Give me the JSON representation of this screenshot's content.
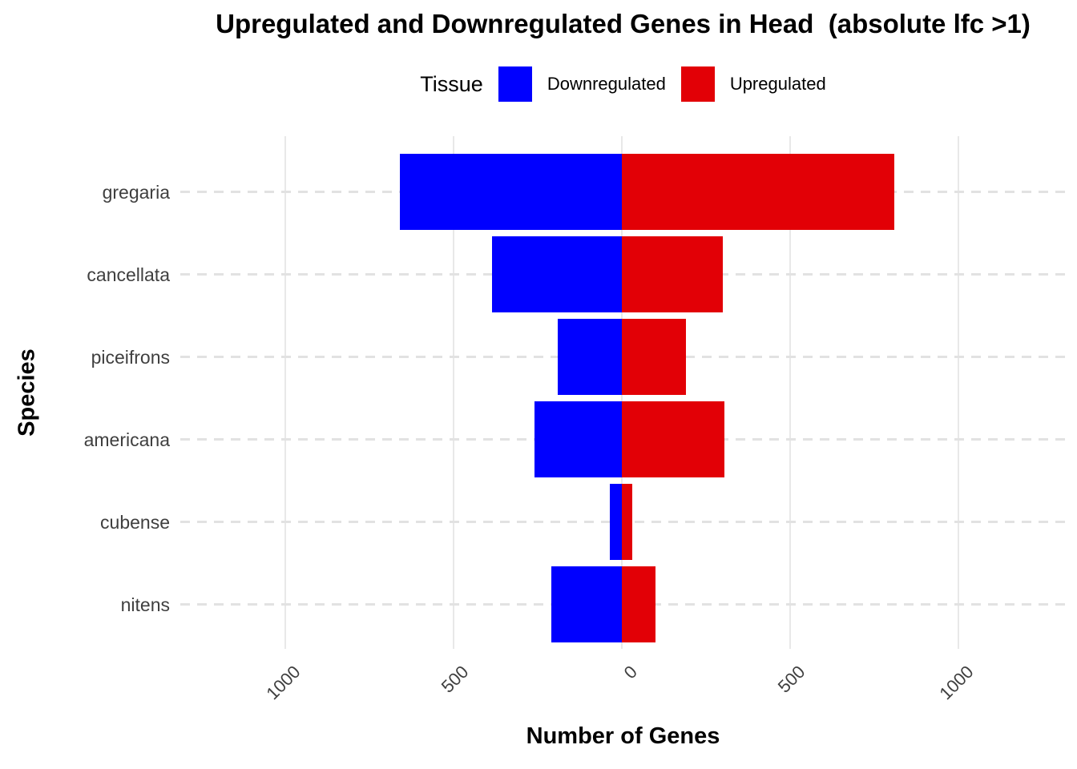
{
  "title": "Upregulated and Downregulated Genes in Head  (absolute lfc >1)",
  "legend": {
    "title": "Tissue",
    "items": [
      {
        "label": "Downregulated",
        "color": "#0000FF"
      },
      {
        "label": "Upregulated",
        "color": "#E20006"
      }
    ]
  },
  "axes": {
    "x_label": "Number of Genes",
    "y_label": "Species"
  },
  "chart_data": {
    "type": "bar",
    "orientation": "horizontal-diverging",
    "title": "Upregulated and Downregulated Genes in Head  (absolute lfc >1)",
    "xlabel": "Number of Genes",
    "ylabel": "Species",
    "legend_title": "Tissue",
    "legend_position": "top",
    "categories": [
      "gregaria",
      "cancellata",
      "piceifrons",
      "americana",
      "cubense",
      "nitens"
    ],
    "series": [
      {
        "name": "Downregulated",
        "color": "#0000FF",
        "direction": "negative",
        "values": [
          660,
          385,
          190,
          260,
          35,
          210
        ]
      },
      {
        "name": "Upregulated",
        "color": "#E20006",
        "direction": "positive",
        "values": [
          810,
          300,
          190,
          305,
          30,
          100
        ]
      }
    ],
    "x_ticks": [
      -1000,
      -500,
      0,
      500,
      1000
    ],
    "x_tick_labels": [
      "1000",
      "500",
      "0",
      "500",
      "1000"
    ],
    "x_tick_angle_deg": 45,
    "xlim": [
      -1310,
      1320
    ],
    "grid": {
      "vertical": "solid",
      "horizontal": "dashed"
    },
    "background": "#FFFFFF"
  }
}
